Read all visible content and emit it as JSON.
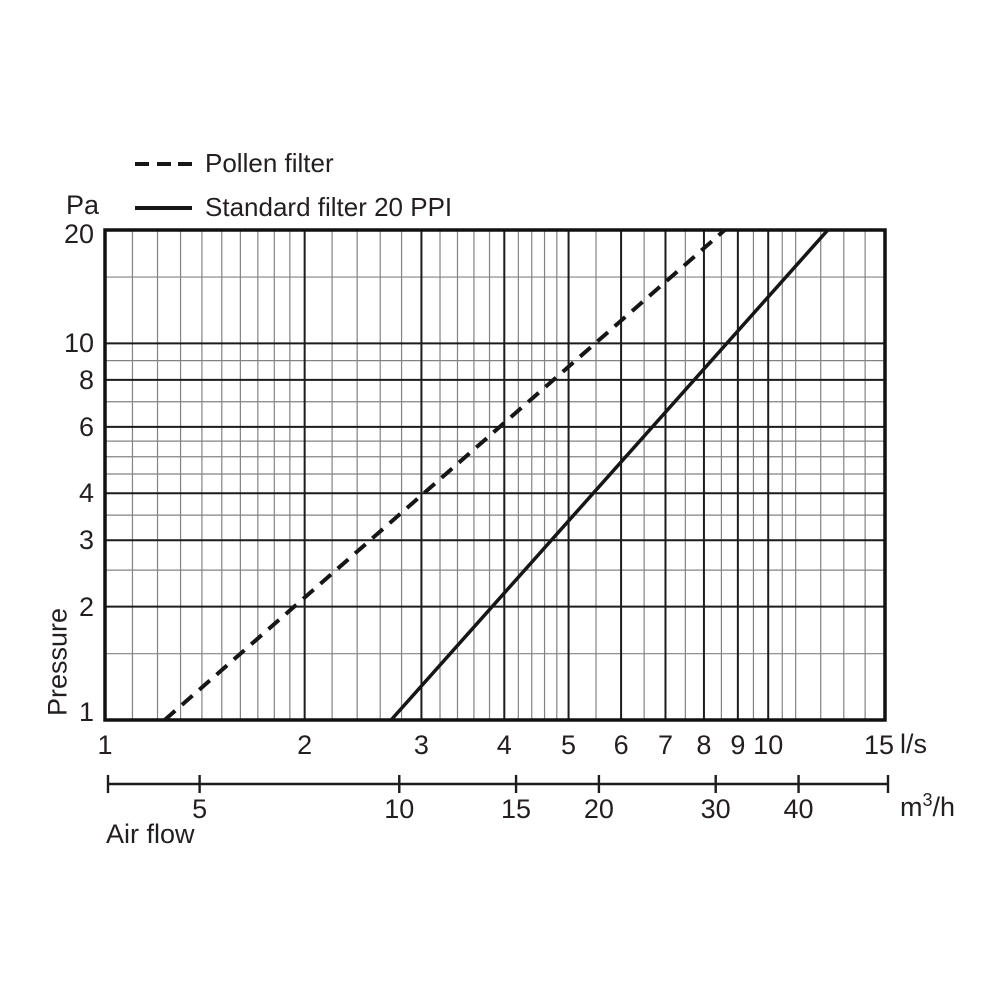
{
  "colors": {
    "curve": "#161616",
    "major_grid": "#1c1c1c",
    "minor_grid": "#838383",
    "border": "#111111",
    "text": "#231f20",
    "background": "#ffffff"
  },
  "legend": {
    "items": [
      {
        "label": "Pollen filter",
        "line_style": "dashed"
      },
      {
        "label": "Standard filter 20 PPI",
        "line_style": "solid"
      }
    ]
  },
  "y_axis": {
    "unit_label": "Pa",
    "axis_title": "Pressure",
    "scale": "log",
    "min": 1,
    "max": 20,
    "labeled_ticks": [
      1,
      2,
      3,
      4,
      6,
      8,
      10,
      20
    ],
    "minor_gridlines": [
      1.5,
      2.5,
      3.5,
      4.5,
      5,
      5.5,
      7,
      9,
      15
    ]
  },
  "x_axis": {
    "unit_label": "l/s",
    "axis_title": "Air flow",
    "scale": "log",
    "min": 1,
    "max": 15,
    "labeled_ticks": [
      1,
      2,
      3,
      4,
      5,
      6,
      7,
      8,
      9,
      10,
      15
    ],
    "minor_gridlines": [
      1.1,
      1.2,
      1.3,
      1.4,
      1.5,
      1.6,
      1.7,
      1.8,
      1.9,
      2.2,
      2.4,
      2.6,
      2.8,
      3.2,
      3.4,
      3.6,
      3.8,
      4.2,
      4.4,
      4.6,
      4.8,
      5.5,
      6.5,
      7.5,
      8.5,
      9.5,
      10.5,
      11,
      12,
      13,
      14
    ]
  },
  "secondary_x_axis": {
    "unit": {
      "prefix": "m",
      "sup": "3",
      "suffix": "/h"
    },
    "labeled_ticks": [
      5,
      10,
      15,
      20,
      30,
      40
    ],
    "ls_per_unit": 0.27778
  },
  "chart_data": {
    "type": "line",
    "x_scale": "log",
    "y_scale": "log",
    "x_unit": "l/s",
    "y_unit": "Pa",
    "x_range": [
      1,
      15
    ],
    "y_range": [
      1,
      20
    ],
    "grid": true,
    "legend_position": "top-left",
    "series": [
      {
        "name": "Pollen filter",
        "style": "dashed",
        "points": [
          {
            "x": 1.23,
            "y": 1
          },
          {
            "x": 8.6,
            "y": 20
          }
        ]
      },
      {
        "name": "Standard filter 20 PPI",
        "style": "solid",
        "points": [
          {
            "x": 2.7,
            "y": 1
          },
          {
            "x": 12.3,
            "y": 20
          }
        ]
      }
    ]
  }
}
